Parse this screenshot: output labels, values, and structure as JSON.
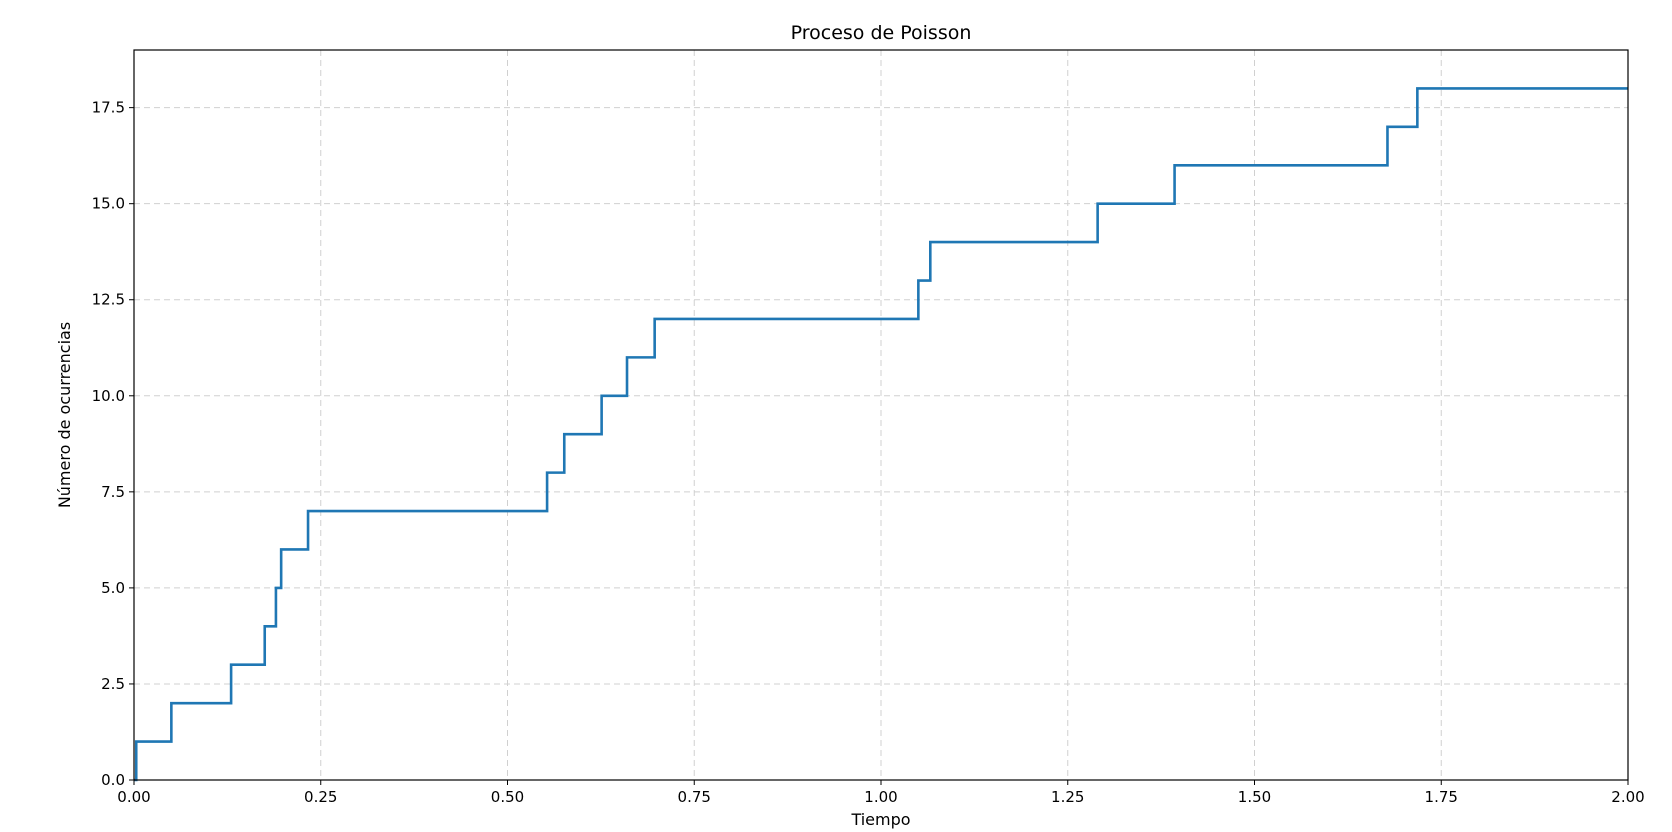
{
  "chart_data": {
    "type": "line",
    "step": "post",
    "title": "Proceso de Poisson",
    "xlabel": "Tiempo",
    "ylabel": "Número de ocurrencias",
    "xlim": [
      0,
      2.0
    ],
    "ylim": [
      0,
      19
    ],
    "xticks": [
      0,
      0.25,
      0.5,
      0.75,
      1.0,
      1.25,
      1.5,
      1.75,
      2.0
    ],
    "xtick_labels": [
      "0.00",
      "0.25",
      "0.50",
      "0.75",
      "1.00",
      "1.25",
      "1.50",
      "1.75",
      "2.00"
    ],
    "yticks": [
      0,
      2.5,
      5,
      7.5,
      10,
      12.5,
      15,
      17.5
    ],
    "ytick_labels": [
      "0.0",
      "2.5",
      "5.0",
      "7.5",
      "10.0",
      "12.5",
      "15.0",
      "17.5"
    ],
    "grid": true,
    "series": [
      {
        "color": "#1f77b4",
        "x": [
          0.0,
          0.003,
          0.05,
          0.13,
          0.175,
          0.19,
          0.197,
          0.233,
          0.553,
          0.576,
          0.626,
          0.66,
          0.697,
          1.05,
          1.066,
          1.29,
          1.393,
          1.678,
          1.718,
          2.0
        ],
        "y": [
          0,
          1,
          2,
          3,
          4,
          5,
          6,
          7,
          8,
          9,
          10,
          11,
          12,
          13,
          14,
          15,
          16,
          17,
          18,
          18
        ]
      }
    ]
  }
}
